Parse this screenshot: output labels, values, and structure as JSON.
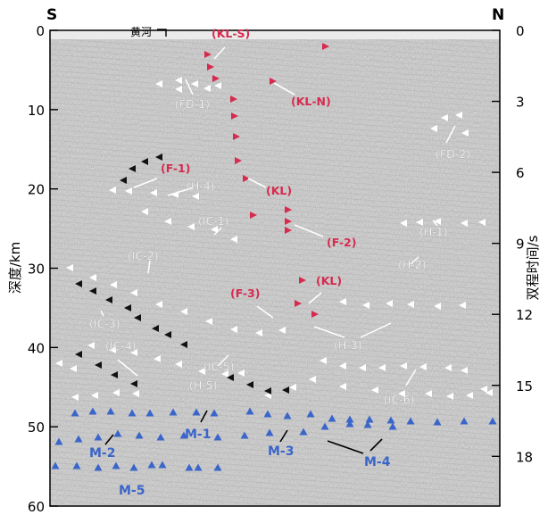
{
  "frame": {
    "left_label": "S",
    "right_label": "N",
    "left_axis_label": "深度/km",
    "right_axis_label": "双程时间/s",
    "depth_ticks": [
      "0",
      "10",
      "20",
      "30",
      "40",
      "50",
      "60"
    ],
    "depth_range": [
      0,
      60
    ],
    "time_ticks": [
      "0",
      "3",
      "6",
      "9",
      "12",
      "15",
      "18"
    ],
    "time_range": [
      0,
      20.1
    ],
    "river_label": "黄河"
  },
  "colors": {
    "red": "#d62a4f",
    "blue": "#3a65c9",
    "white": "#ffffff",
    "black": "#111111",
    "seismic_bg": "#cfcfcf"
  },
  "labels": [
    {
      "id": "kl-s",
      "text": "(KL-S)",
      "color": "red"
    },
    {
      "id": "kl-n",
      "text": "(KL-N)",
      "color": "red"
    },
    {
      "id": "fd-1",
      "text": "(FD-1)",
      "color": "white"
    },
    {
      "id": "fd-2",
      "text": "(FD-2)",
      "color": "white"
    },
    {
      "id": "f-1",
      "text": "(F-1)",
      "color": "red"
    },
    {
      "id": "kl-1",
      "text": "(KL)",
      "color": "red"
    },
    {
      "id": "h-4",
      "text": "(H-4)",
      "color": "white"
    },
    {
      "id": "ic-1",
      "text": "(IC-1)",
      "color": "white"
    },
    {
      "id": "f-2",
      "text": "(F-2)",
      "color": "red"
    },
    {
      "id": "h-1",
      "text": "(H-1)",
      "color": "white"
    },
    {
      "id": "ic-2",
      "text": "(IC-2)",
      "color": "white"
    },
    {
      "id": "h-2",
      "text": "(H-2)",
      "color": "white"
    },
    {
      "id": "f-3",
      "text": "(F-3)",
      "color": "red"
    },
    {
      "id": "kl-2",
      "text": "(KL)",
      "color": "red"
    },
    {
      "id": "ic-3",
      "text": "(IC-3)",
      "color": "white"
    },
    {
      "id": "h-3",
      "text": "(H-3)",
      "color": "white"
    },
    {
      "id": "ic-4",
      "text": "(IC-4)",
      "color": "white"
    },
    {
      "id": "ic-5",
      "text": "(IC-5)",
      "color": "white"
    },
    {
      "id": "h-5",
      "text": "(H-5)",
      "color": "white"
    },
    {
      "id": "ic-6",
      "text": "(IC-6)",
      "color": "white"
    },
    {
      "id": "m-1",
      "text": "M-1",
      "color": "blue"
    },
    {
      "id": "m-2",
      "text": "M-2",
      "color": "blue"
    },
    {
      "id": "m-3",
      "text": "M-3",
      "color": "blue"
    },
    {
      "id": "m-4",
      "text": "M-4",
      "color": "blue"
    },
    {
      "id": "m-5",
      "text": "M-5",
      "color": "blue"
    }
  ]
}
